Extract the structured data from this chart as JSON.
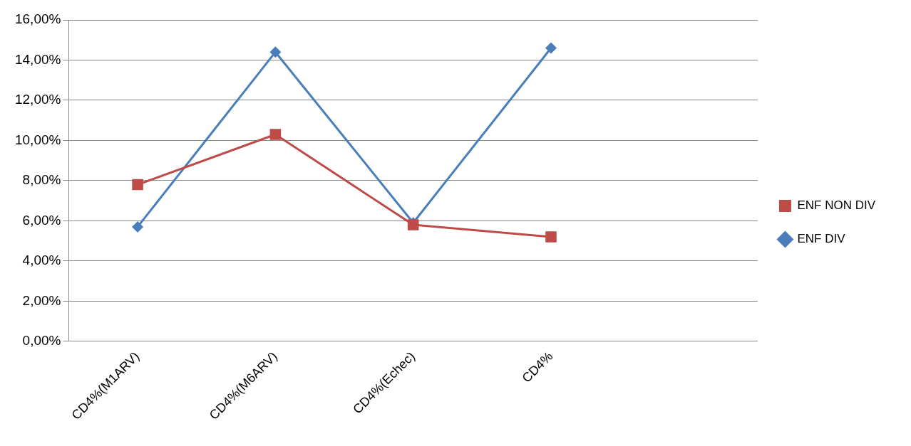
{
  "chart_data": {
    "type": "line",
    "categories": [
      "CD4%(M1ARV)",
      "CD4%(M6ARV)",
      "CD4%(Echec)",
      "CD4%",
      null
    ],
    "series": [
      {
        "name": "ENF DIV",
        "color": "#4a7ebb",
        "marker": "diamond",
        "values": [
          5.7,
          14.4,
          5.9,
          14.6,
          null
        ]
      },
      {
        "name": "ENF NON DIV",
        "color": "#be4b48",
        "marker": "square",
        "values": [
          7.8,
          10.3,
          5.8,
          5.2,
          null
        ]
      }
    ],
    "ylim": [
      0,
      16
    ],
    "yticks": [
      {
        "value": 0,
        "label": "0,00%"
      },
      {
        "value": 2,
        "label": "2,00%"
      },
      {
        "value": 4,
        "label": "4,00%"
      },
      {
        "value": 6,
        "label": "6,00%"
      },
      {
        "value": 8,
        "label": "8,00%"
      },
      {
        "value": 10,
        "label": "10,00%"
      },
      {
        "value": 12,
        "label": "12,00%"
      },
      {
        "value": 14,
        "label": "14,00%"
      },
      {
        "value": 16,
        "label": "16,00%"
      }
    ],
    "grid": "y",
    "legend": "right",
    "line_style": "solid"
  }
}
